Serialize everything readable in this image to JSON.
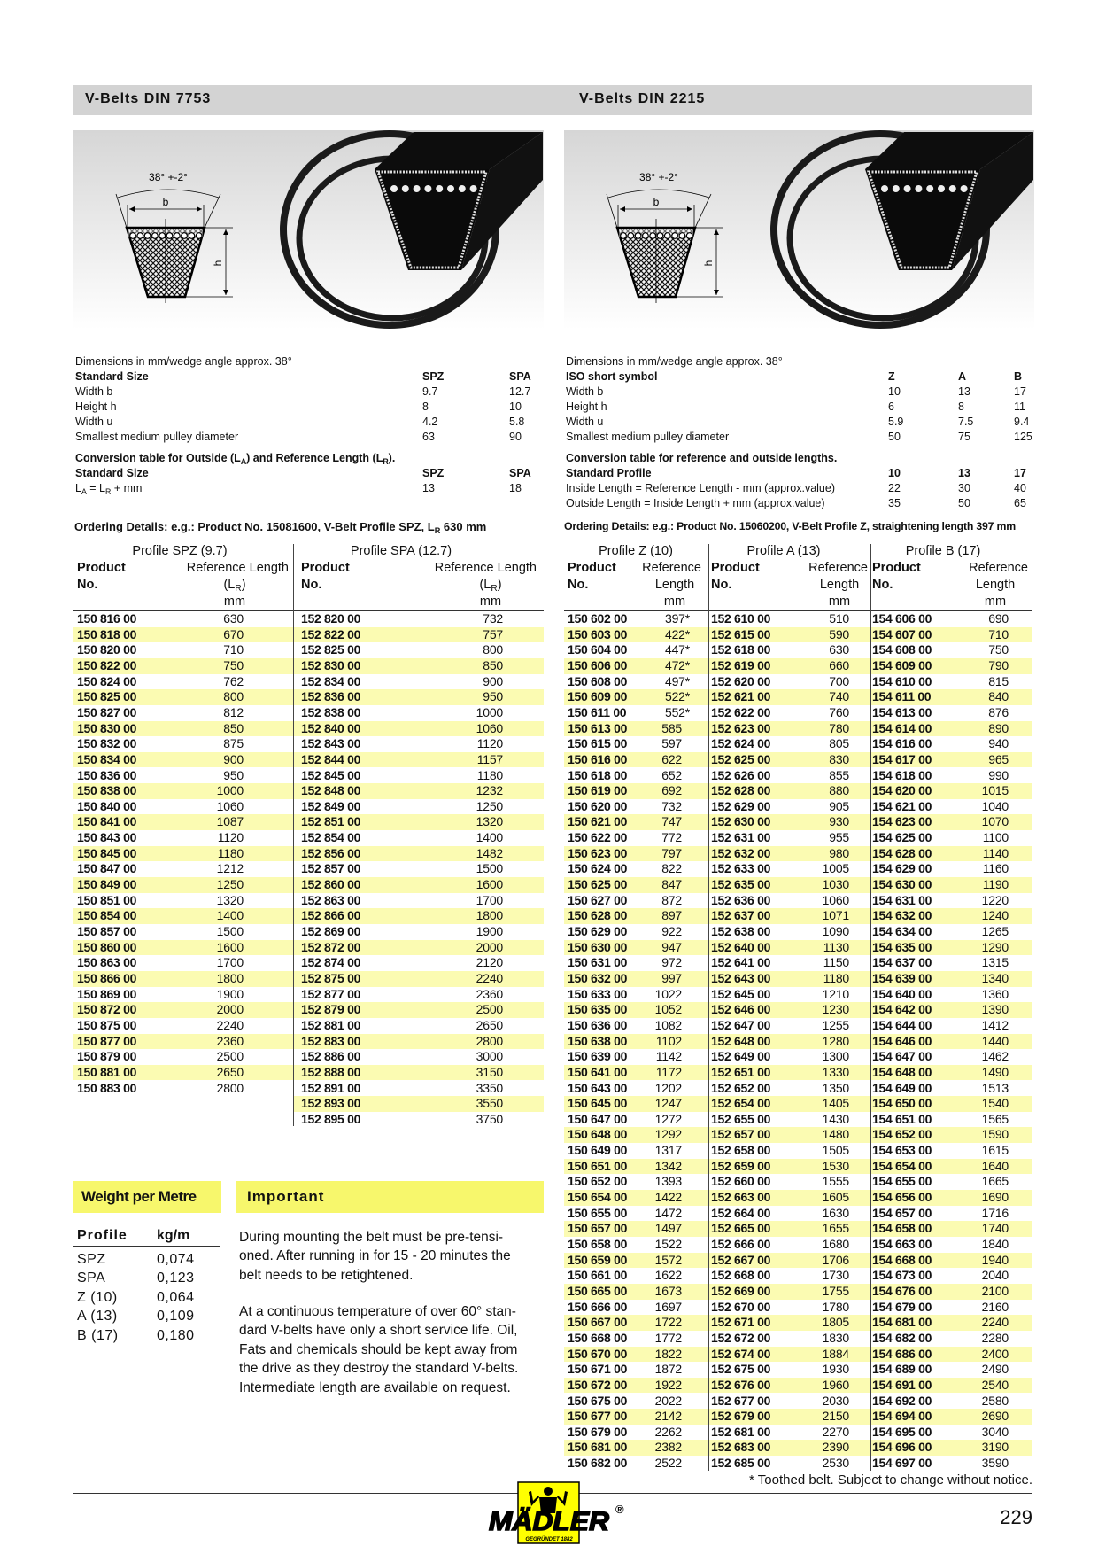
{
  "header": {
    "left_title": "V-Belts DIN 7753",
    "right_title": "V-Belts DIN 2215"
  },
  "diagram": {
    "angle_label": "38° +-2°",
    "width_label": "b",
    "height_label": "h"
  },
  "left_specs": {
    "intro": "Dimensions in mm/wedge angle approx. 38°",
    "columns": [
      "Standard Size",
      "SPZ",
      "SPA"
    ],
    "rows": [
      [
        "Width b",
        "9.7",
        "12.7"
      ],
      [
        "Height h",
        "8",
        "10"
      ],
      [
        "Width u",
        "4.2",
        "5.8"
      ],
      [
        "Smallest medium pulley diameter",
        "63",
        "90"
      ]
    ],
    "conversion_title": [
      "Conversion table for Outside (L",
      "A",
      ") and Reference Length (L",
      "R",
      ")."
    ],
    "conversion_columns": [
      "Standard Size",
      "SPZ",
      "SPA"
    ],
    "conversion_row": {
      "label": [
        "L",
        "A",
        " = L",
        "R",
        " + mm"
      ],
      "values": [
        "13",
        "18"
      ]
    }
  },
  "right_specs": {
    "intro": "Dimensions in mm/wedge angle approx. 38°",
    "columns": [
      "ISO short symbol",
      "Z",
      "A",
      "B"
    ],
    "rows": [
      [
        "Width b",
        "10",
        "13",
        "17"
      ],
      [
        "Height h",
        "6",
        "8",
        "11"
      ],
      [
        "Width u",
        "5.9",
        "7.5",
        "9.4"
      ],
      [
        "Smallest medium pulley diameter",
        "50",
        "75",
        "125"
      ]
    ],
    "conversion_title": "Conversion table for reference and outside lengths.",
    "conversion_columns": [
      "Standard Profile",
      "10",
      "13",
      "17"
    ],
    "conversion_rows": [
      [
        "Inside Length = Reference Length - mm (approx.value)",
        "22",
        "30",
        "40"
      ],
      [
        "Outside Length = Inside Length + mm (approx.value)",
        "35",
        "50",
        "65"
      ]
    ]
  },
  "ordering": {
    "left": [
      "Ordering Details: e.g.: Product No. 15081600, V-Belt Profile SPZ, L",
      "R",
      " 630 mm"
    ],
    "right": "Ordering Details: e.g.: Product No. 15060200, V-Belt Profile Z, straightening length 397 mm"
  },
  "table_headers": {
    "product": "Product",
    "no": "No.",
    "reference_length": "Reference Length",
    "reference": "Reference",
    "length": "Length",
    "lr": [
      "(L",
      "R",
      ")"
    ],
    "mm": "mm"
  },
  "tables": {
    "spz": {
      "title": "Profile SPZ (9.7)",
      "rows": [
        [
          "150 816 00",
          "630"
        ],
        [
          "150 818 00",
          "670"
        ],
        [
          "150 820 00",
          "710"
        ],
        [
          "150 822 00",
          "750"
        ],
        [
          "150 824 00",
          "762"
        ],
        [
          "150 825 00",
          "800"
        ],
        [
          "150 827 00",
          "812"
        ],
        [
          "150 830 00",
          "850"
        ],
        [
          "150 832 00",
          "875"
        ],
        [
          "150 834 00",
          "900"
        ],
        [
          "150 836 00",
          "950"
        ],
        [
          "150 838 00",
          "1000"
        ],
        [
          "150 840 00",
          "1060"
        ],
        [
          "150 841 00",
          "1087"
        ],
        [
          "150 843 00",
          "1120"
        ],
        [
          "150 845 00",
          "1180"
        ],
        [
          "150 847 00",
          "1212"
        ],
        [
          "150 849 00",
          "1250"
        ],
        [
          "150 851 00",
          "1320"
        ],
        [
          "150 854 00",
          "1400"
        ],
        [
          "150 857 00",
          "1500"
        ],
        [
          "150 860 00",
          "1600"
        ],
        [
          "150 863 00",
          "1700"
        ],
        [
          "150 866 00",
          "1800"
        ],
        [
          "150 869 00",
          "1900"
        ],
        [
          "150 872 00",
          "2000"
        ],
        [
          "150 875 00",
          "2240"
        ],
        [
          "150 877 00",
          "2360"
        ],
        [
          "150 879 00",
          "2500"
        ],
        [
          "150 881 00",
          "2650"
        ],
        [
          "150 883 00",
          "2800"
        ]
      ]
    },
    "spa": {
      "title": "Profile SPA (12.7)",
      "rows": [
        [
          "152 820 00",
          "732"
        ],
        [
          "152 822 00",
          "757"
        ],
        [
          "152 825 00",
          "800"
        ],
        [
          "152 830 00",
          "850"
        ],
        [
          "152 834 00",
          "900"
        ],
        [
          "152 836 00",
          "950"
        ],
        [
          "152 838 00",
          "1000"
        ],
        [
          "152 840 00",
          "1060"
        ],
        [
          "152 843 00",
          "1120"
        ],
        [
          "152 844 00",
          "1157"
        ],
        [
          "152 845 00",
          "1180"
        ],
        [
          "152 848 00",
          "1232"
        ],
        [
          "152 849 00",
          "1250"
        ],
        [
          "152 851 00",
          "1320"
        ],
        [
          "152 854 00",
          "1400"
        ],
        [
          "152 856 00",
          "1482"
        ],
        [
          "152 857 00",
          "1500"
        ],
        [
          "152 860 00",
          "1600"
        ],
        [
          "152 863 00",
          "1700"
        ],
        [
          "152 866 00",
          "1800"
        ],
        [
          "152 869 00",
          "1900"
        ],
        [
          "152 872 00",
          "2000"
        ],
        [
          "152 874 00",
          "2120"
        ],
        [
          "152 875 00",
          "2240"
        ],
        [
          "152 877 00",
          "2360"
        ],
        [
          "152 879 00",
          "2500"
        ],
        [
          "152 881 00",
          "2650"
        ],
        [
          "152 883 00",
          "2800"
        ],
        [
          "152 886 00",
          "3000"
        ],
        [
          "152 888 00",
          "3150"
        ],
        [
          "152 891 00",
          "3350"
        ],
        [
          "152 893 00",
          "3550"
        ],
        [
          "152 895 00",
          "3750"
        ]
      ]
    },
    "z": {
      "title": "Profile Z (10)",
      "rows": [
        [
          "150 602 00",
          "397*"
        ],
        [
          "150 603 00",
          "422*"
        ],
        [
          "150 604 00",
          "447*"
        ],
        [
          "150 606 00",
          "472*"
        ],
        [
          "150 608 00",
          "497*"
        ],
        [
          "150 609 00",
          "522*"
        ],
        [
          "150 611 00",
          "552*"
        ],
        [
          "150 613 00",
          "585"
        ],
        [
          "150 615 00",
          "597"
        ],
        [
          "150 616 00",
          "622"
        ],
        [
          "150 618 00",
          "652"
        ],
        [
          "150 619 00",
          "692"
        ],
        [
          "150 620 00",
          "732"
        ],
        [
          "150 621 00",
          "747"
        ],
        [
          "150 622 00",
          "772"
        ],
        [
          "150 623 00",
          "797"
        ],
        [
          "150 624 00",
          "822"
        ],
        [
          "150 625 00",
          "847"
        ],
        [
          "150 627 00",
          "872"
        ],
        [
          "150 628 00",
          "897"
        ],
        [
          "150 629 00",
          "922"
        ],
        [
          "150 630 00",
          "947"
        ],
        [
          "150 631 00",
          "972"
        ],
        [
          "150 632 00",
          "997"
        ],
        [
          "150 633 00",
          "1022"
        ],
        [
          "150 635 00",
          "1052"
        ],
        [
          "150 636 00",
          "1082"
        ],
        [
          "150 638 00",
          "1102"
        ],
        [
          "150 639 00",
          "1142"
        ],
        [
          "150 641 00",
          "1172"
        ],
        [
          "150 643 00",
          "1202"
        ],
        [
          "150 645 00",
          "1247"
        ],
        [
          "150 647 00",
          "1272"
        ],
        [
          "150 648 00",
          "1292"
        ],
        [
          "150 649 00",
          "1317"
        ],
        [
          "150 651 00",
          "1342"
        ],
        [
          "150 652 00",
          "1393"
        ],
        [
          "150 654 00",
          "1422"
        ],
        [
          "150 655 00",
          "1472"
        ],
        [
          "150 657 00",
          "1497"
        ],
        [
          "150 658 00",
          "1522"
        ],
        [
          "150 659 00",
          "1572"
        ],
        [
          "150 661 00",
          "1622"
        ],
        [
          "150 665 00",
          "1673"
        ],
        [
          "150 666 00",
          "1697"
        ],
        [
          "150 667 00",
          "1722"
        ],
        [
          "150 668 00",
          "1772"
        ],
        [
          "150 670 00",
          "1822"
        ],
        [
          "150 671 00",
          "1872"
        ],
        [
          "150 672 00",
          "1922"
        ],
        [
          "150 675 00",
          "2022"
        ],
        [
          "150 677 00",
          "2142"
        ],
        [
          "150 679 00",
          "2262"
        ],
        [
          "150 681 00",
          "2382"
        ],
        [
          "150 682 00",
          "2522"
        ]
      ]
    },
    "a": {
      "title": "Profile A (13)",
      "rows": [
        [
          "152 610 00",
          "510"
        ],
        [
          "152 615 00",
          "590"
        ],
        [
          "152 618 00",
          "630"
        ],
        [
          "152 619 00",
          "660"
        ],
        [
          "152 620 00",
          "700"
        ],
        [
          "152 621 00",
          "740"
        ],
        [
          "152 622 00",
          "760"
        ],
        [
          "152 623 00",
          "780"
        ],
        [
          "152 624 00",
          "805"
        ],
        [
          "152 625 00",
          "830"
        ],
        [
          "152 626 00",
          "855"
        ],
        [
          "152 628 00",
          "880"
        ],
        [
          "152 629 00",
          "905"
        ],
        [
          "152 630 00",
          "930"
        ],
        [
          "152 631 00",
          "955"
        ],
        [
          "152 632 00",
          "980"
        ],
        [
          "152 633 00",
          "1005"
        ],
        [
          "152 635 00",
          "1030"
        ],
        [
          "152 636 00",
          "1060"
        ],
        [
          "152 637 00",
          "1071"
        ],
        [
          "152 638 00",
          "1090"
        ],
        [
          "152 640 00",
          "1130"
        ],
        [
          "152 641 00",
          "1150"
        ],
        [
          "152 643 00",
          "1180"
        ],
        [
          "152 645 00",
          "1210"
        ],
        [
          "152 646 00",
          "1230"
        ],
        [
          "152 647 00",
          "1255"
        ],
        [
          "152 648 00",
          "1280"
        ],
        [
          "152 649 00",
          "1300"
        ],
        [
          "152 651 00",
          "1330"
        ],
        [
          "152 652 00",
          "1350"
        ],
        [
          "152 654 00",
          "1405"
        ],
        [
          "152 655 00",
          "1430"
        ],
        [
          "152 657 00",
          "1480"
        ],
        [
          "152 658 00",
          "1505"
        ],
        [
          "152 659 00",
          "1530"
        ],
        [
          "152 660 00",
          "1555"
        ],
        [
          "152 663 00",
          "1605"
        ],
        [
          "152 664 00",
          "1630"
        ],
        [
          "152 665 00",
          "1655"
        ],
        [
          "152 666 00",
          "1680"
        ],
        [
          "152 667 00",
          "1706"
        ],
        [
          "152 668 00",
          "1730"
        ],
        [
          "152 669 00",
          "1755"
        ],
        [
          "152 670 00",
          "1780"
        ],
        [
          "152 671 00",
          "1805"
        ],
        [
          "152 672 00",
          "1830"
        ],
        [
          "152 674 00",
          "1884"
        ],
        [
          "152 675 00",
          "1930"
        ],
        [
          "152 676 00",
          "1960"
        ],
        [
          "152 677 00",
          "2030"
        ],
        [
          "152 679 00",
          "2150"
        ],
        [
          "152 681 00",
          "2270"
        ],
        [
          "152 683 00",
          "2390"
        ],
        [
          "152 685 00",
          "2530"
        ]
      ]
    },
    "b": {
      "title": "Profile B (17)",
      "rows": [
        [
          "154 606 00",
          "690"
        ],
        [
          "154 607 00",
          "710"
        ],
        [
          "154 608 00",
          "750"
        ],
        [
          "154 609 00",
          "790"
        ],
        [
          "154 610 00",
          "815"
        ],
        [
          "154 611 00",
          "840"
        ],
        [
          "154 613 00",
          "876"
        ],
        [
          "154 614 00",
          "890"
        ],
        [
          "154 616 00",
          "940"
        ],
        [
          "154 617 00",
          "965"
        ],
        [
          "154 618 00",
          "990"
        ],
        [
          "154 620 00",
          "1015"
        ],
        [
          "154 621 00",
          "1040"
        ],
        [
          "154 623 00",
          "1070"
        ],
        [
          "154 625 00",
          "1100"
        ],
        [
          "154 628 00",
          "1140"
        ],
        [
          "154 629 00",
          "1160"
        ],
        [
          "154 630 00",
          "1190"
        ],
        [
          "154 631 00",
          "1220"
        ],
        [
          "154 632 00",
          "1240"
        ],
        [
          "154 634 00",
          "1265"
        ],
        [
          "154 635 00",
          "1290"
        ],
        [
          "154 637 00",
          "1315"
        ],
        [
          "154 639 00",
          "1340"
        ],
        [
          "154 640 00",
          "1360"
        ],
        [
          "154 642 00",
          "1390"
        ],
        [
          "154 644 00",
          "1412"
        ],
        [
          "154 646 00",
          "1440"
        ],
        [
          "154 647 00",
          "1462"
        ],
        [
          "154 648 00",
          "1490"
        ],
        [
          "154 649 00",
          "1513"
        ],
        [
          "154 650 00",
          "1540"
        ],
        [
          "154 651 00",
          "1565"
        ],
        [
          "154 652 00",
          "1590"
        ],
        [
          "154 653 00",
          "1615"
        ],
        [
          "154 654 00",
          "1640"
        ],
        [
          "154 655 00",
          "1665"
        ],
        [
          "154 656 00",
          "1690"
        ],
        [
          "154 657 00",
          "1716"
        ],
        [
          "154 658 00",
          "1740"
        ],
        [
          "154 663 00",
          "1840"
        ],
        [
          "154 668 00",
          "1940"
        ],
        [
          "154 673 00",
          "2040"
        ],
        [
          "154 676 00",
          "2100"
        ],
        [
          "154 679 00",
          "2160"
        ],
        [
          "154 681 00",
          "2240"
        ],
        [
          "154 682 00",
          "2280"
        ],
        [
          "154 686 00",
          "2400"
        ],
        [
          "154 689 00",
          "2490"
        ],
        [
          "154 691 00",
          "2540"
        ],
        [
          "154 692 00",
          "2580"
        ],
        [
          "154 694 00",
          "2690"
        ],
        [
          "154 695 00",
          "3040"
        ],
        [
          "154 696 00",
          "3190"
        ],
        [
          "154 697 00",
          "3590"
        ]
      ]
    }
  },
  "weight": {
    "title": "Weight per Metre",
    "columns": [
      "Profile",
      "kg/m"
    ],
    "rows": [
      [
        "SPZ",
        "0,074"
      ],
      [
        "SPA",
        "0,123"
      ],
      [
        "Z (10)",
        "0,064"
      ],
      [
        "A (13)",
        "0,109"
      ],
      [
        "B (17)",
        "0,180"
      ]
    ]
  },
  "important": {
    "title": "Important",
    "para1": [
      "During mounting the belt must be pre-tensi-",
      "oned. After running in for 15 - 20 minutes the",
      "belt needs to be retightened."
    ],
    "para2": [
      "At a continuous temperature of over 60° stan-",
      "dard V-belts have only a short service life. Oil,",
      "Fats and chemicals should be kept away from",
      "the drive as they destroy the standard V-belts.",
      "Intermediate length are available on request."
    ]
  },
  "footnote": "* Toothed belt.  Subject to change without notice.",
  "logo": {
    "name": "MÄDLER",
    "registered": "®",
    "tagline": "GEGRÜNDET 1882"
  },
  "page_number": "229",
  "colors": {
    "header_bar": "#d3d3d3",
    "row_highlight": "#fbfbb2",
    "box_yellow": "#f7f76c",
    "logo_yellow": "#ffff00"
  }
}
